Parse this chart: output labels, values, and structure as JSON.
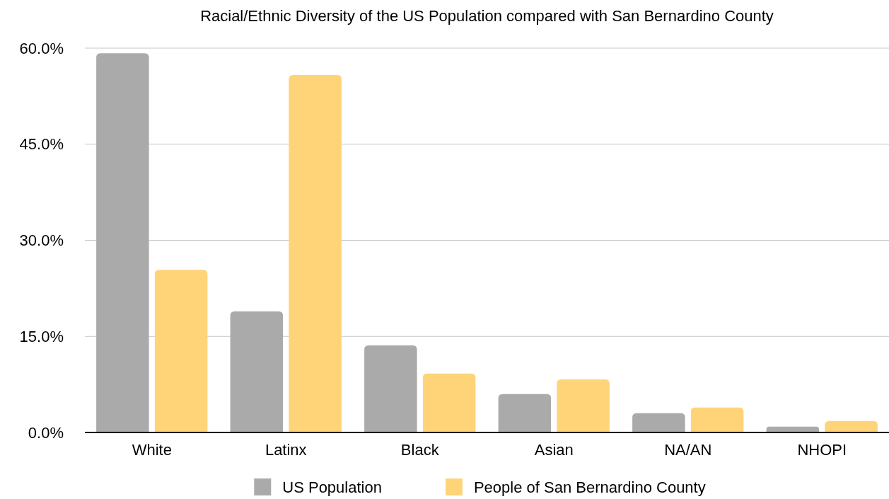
{
  "chart_data": {
    "type": "bar",
    "title": "Racial/Ethnic Diversity of the US Population compared with San Bernardino County",
    "categories": [
      "White",
      "Latinx",
      "Black",
      "Asian",
      "NA/AN",
      "NHOPI"
    ],
    "series": [
      {
        "name": "US Population",
        "color": "#aaaaaa",
        "values": [
          59.2,
          18.9,
          13.6,
          6.0,
          3.0,
          0.9
        ]
      },
      {
        "name": "People of San Bernardino County",
        "color": "#ffd479",
        "values": [
          25.4,
          55.8,
          9.2,
          8.3,
          3.9,
          1.8
        ]
      }
    ],
    "ylim": [
      0,
      60
    ],
    "yticks": [
      {
        "value": 0,
        "label": "0.0%"
      },
      {
        "value": 15,
        "label": "15.0%"
      },
      {
        "value": 30,
        "label": "30.0%"
      },
      {
        "value": 45,
        "label": "45.0%"
      },
      {
        "value": 60,
        "label": "60.0%"
      }
    ],
    "grid": "y",
    "legend": "bottom"
  }
}
